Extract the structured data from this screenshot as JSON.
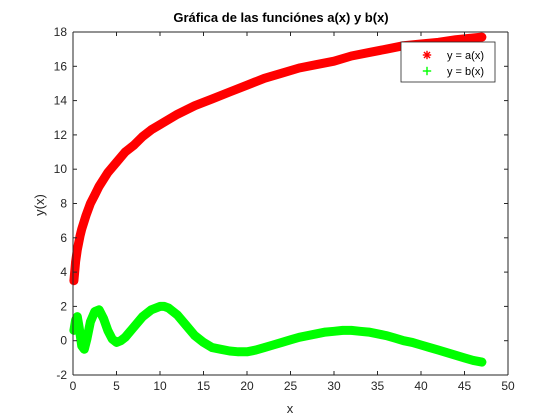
{
  "chart_data": {
    "type": "scatter",
    "title": "Gráfica de las funciónes a(x) y b(x)",
    "xlabel": "x",
    "ylabel": "y(x)",
    "xlim": [
      0,
      50
    ],
    "ylim": [
      -2,
      18
    ],
    "xticks": [
      0,
      5,
      10,
      15,
      20,
      25,
      30,
      35,
      40,
      45,
      50
    ],
    "yticks": [
      -2,
      0,
      2,
      4,
      6,
      8,
      10,
      12,
      14,
      16,
      18
    ],
    "grid": false,
    "legend_position": "top-right",
    "series": [
      {
        "name": "y = a(x)",
        "marker": "*",
        "color": "#ff0000",
        "x": [
          0.1,
          0.3,
          0.5,
          0.8,
          1,
          1.5,
          2,
          2.5,
          3,
          4,
          5,
          6,
          7,
          8,
          9,
          10,
          12,
          14,
          16,
          18,
          20,
          22,
          24,
          26,
          28,
          30,
          32,
          34,
          36,
          38,
          40,
          42,
          44,
          46,
          47
        ],
        "y": [
          3.5,
          4.6,
          5.3,
          6.1,
          6.5,
          7.3,
          8.0,
          8.5,
          9.0,
          9.8,
          10.4,
          11.0,
          11.4,
          11.9,
          12.3,
          12.6,
          13.2,
          13.7,
          14.1,
          14.5,
          14.9,
          15.3,
          15.6,
          15.9,
          16.1,
          16.3,
          16.6,
          16.8,
          17.0,
          17.2,
          17.3,
          17.4,
          17.55,
          17.65,
          17.7
        ]
      },
      {
        "name": "y = b(x)",
        "marker": "+",
        "color": "#00ff00",
        "x": [
          0.1,
          0.3,
          0.5,
          0.7,
          1.0,
          1.3,
          1.6,
          2.0,
          2.5,
          3.0,
          3.5,
          4.0,
          4.5,
          5.0,
          5.5,
          6.0,
          7.0,
          8.0,
          9.0,
          10.0,
          10.5,
          11.0,
          12.0,
          13.0,
          14.0,
          15.0,
          16.0,
          17.0,
          18.0,
          19.0,
          20.0,
          21.0,
          22.0,
          23.0,
          24.0,
          25.0,
          26.0,
          27.0,
          28.0,
          29.0,
          30.0,
          31.0,
          32.0,
          33.0,
          34.0,
          35.0,
          36.0,
          37.0,
          38.0,
          39.0,
          40.0,
          41.0,
          42.0,
          43.0,
          44.0,
          45.0,
          46.0,
          47.0
        ],
        "y": [
          0.6,
          1.2,
          1.4,
          0.8,
          -0.3,
          -0.5,
          0.1,
          1.1,
          1.7,
          1.8,
          1.3,
          0.6,
          0.1,
          -0.1,
          0.0,
          0.2,
          0.8,
          1.4,
          1.8,
          2.0,
          2.0,
          1.9,
          1.5,
          0.9,
          0.3,
          -0.1,
          -0.4,
          -0.5,
          -0.6,
          -0.65,
          -0.65,
          -0.55,
          -0.4,
          -0.25,
          -0.1,
          0.05,
          0.2,
          0.3,
          0.4,
          0.5,
          0.55,
          0.6,
          0.6,
          0.55,
          0.5,
          0.4,
          0.3,
          0.15,
          0.0,
          -0.1,
          -0.25,
          -0.4,
          -0.55,
          -0.7,
          -0.85,
          -1.0,
          -1.15,
          -1.25
        ]
      }
    ]
  }
}
